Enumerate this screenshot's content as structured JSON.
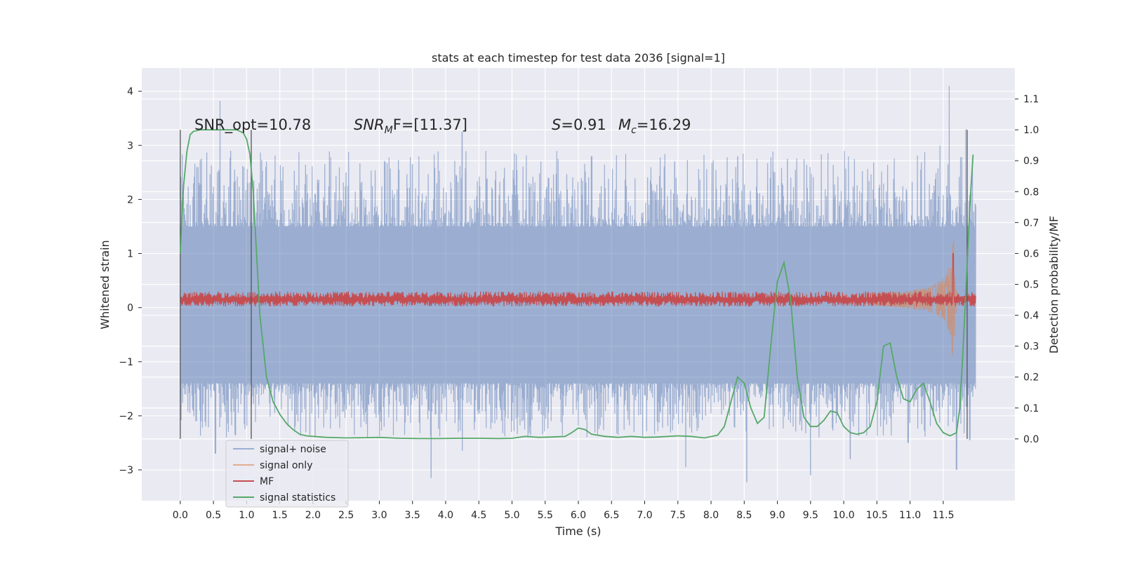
{
  "chart_data": {
    "type": "line",
    "title": "stats at each timestep for test data 2036 [signal=1]",
    "xlabel": "Time (s)",
    "ylabel_left": "Whitened strain",
    "ylabel_right": "Detection probability/MF",
    "xlim": [
      -0.58,
      12.58
    ],
    "ylim_left": [
      -3.57,
      4.43
    ],
    "ylim_right": [
      -0.2,
      1.2
    ],
    "x_ticks": [
      "0.0",
      "0.5",
      "1.0",
      "1.5",
      "2.0",
      "2.5",
      "3.0",
      "3.5",
      "4.0",
      "4.5",
      "5.0",
      "5.5",
      "6.0",
      "6.5",
      "7.0",
      "7.5",
      "8.0",
      "8.5",
      "9.0",
      "9.5",
      "10.0",
      "10.5",
      "11.0",
      "11.5"
    ],
    "y_ticks_left": [
      "4",
      "3",
      "2",
      "1",
      "0",
      "−1",
      "−2",
      "−3"
    ],
    "y_ticks_right": [
      "1.1",
      "1.0",
      "0.9",
      "0.8",
      "0.7",
      "0.6",
      "0.5",
      "0.4",
      "0.3",
      "0.2",
      "0.1",
      "0.0"
    ],
    "grid": true,
    "legend_position": "lower-left",
    "annotations": {
      "snr_opt": "SNR_opt=10.78",
      "snr_mf_symbol": "SNR",
      "snr_mf_sub": "M",
      "snr_mf_rest": "F=[11.37]",
      "s_symbol": "S",
      "s_rest": "=0.91",
      "mc_symbol": "M",
      "mc_sub": "c",
      "mc_rest": "=16.29"
    },
    "vertical_markers": [
      0.0,
      1.07,
      11.86
    ],
    "series": [
      {
        "name": "signal+ noise",
        "color": "#4c72b0",
        "kind": "noise_band",
        "x_range": [
          0.0,
          11.99
        ],
        "band_low": -1.45,
        "band_high": 1.55,
        "spike_peaks": [
          [
            0.19,
            2.05
          ],
          [
            0.6,
            3.82
          ],
          [
            0.76,
            2.9
          ],
          [
            1.3,
            2.7
          ],
          [
            2.5,
            2.5
          ],
          [
            3.5,
            2.65
          ],
          [
            4.25,
            3.25
          ],
          [
            5.55,
            2.4
          ],
          [
            6.2,
            2.8
          ],
          [
            7.45,
            2.7
          ],
          [
            8.4,
            2.8
          ],
          [
            9.15,
            2.75
          ],
          [
            11.45,
            3.0
          ],
          [
            11.59,
            4.1
          ],
          [
            11.84,
            3.3
          ]
        ],
        "spike_troughs": [
          [
            0.24,
            -2.1
          ],
          [
            0.53,
            -2.7
          ],
          [
            3.78,
            -3.15
          ],
          [
            4.25,
            -2.65
          ],
          [
            7.62,
            -2.95
          ],
          [
            8.54,
            -3.23
          ],
          [
            9.5,
            -3.1
          ],
          [
            10.1,
            -2.8
          ],
          [
            10.97,
            -2.5
          ],
          [
            11.7,
            -3.0
          ],
          [
            11.9,
            -2.45
          ]
        ]
      },
      {
        "name": "signal only",
        "color": "#dd8452",
        "kind": "chirp",
        "x_range": [
          10.0,
          11.8
        ],
        "peak_time": 11.65,
        "peak_amplitude": 1.4
      },
      {
        "name": "MF",
        "color": "#c44e52",
        "kind": "band",
        "x_range": [
          0.0,
          11.99
        ],
        "band_low": 0.02,
        "band_high": 0.3,
        "spike_time": 11.65,
        "spike_value": 1.0
      },
      {
        "name": "signal statistics",
        "color": "#55a868",
        "axis": "right",
        "x": [
          0.0,
          0.05,
          0.1,
          0.15,
          0.2,
          0.3,
          0.5,
          0.7,
          0.85,
          0.95,
          1.0,
          1.05,
          1.1,
          1.15,
          1.2,
          1.3,
          1.4,
          1.5,
          1.6,
          1.7,
          1.8,
          1.9,
          2.0,
          2.2,
          2.5,
          2.8,
          3.0,
          3.3,
          3.6,
          3.9,
          4.2,
          4.5,
          4.8,
          5.0,
          5.2,
          5.4,
          5.6,
          5.8,
          5.9,
          6.0,
          6.1,
          6.2,
          6.4,
          6.6,
          6.8,
          7.0,
          7.2,
          7.5,
          7.7,
          7.9,
          8.1,
          8.2,
          8.3,
          8.4,
          8.5,
          8.6,
          8.7,
          8.8,
          8.9,
          9.0,
          9.1,
          9.2,
          9.3,
          9.4,
          9.5,
          9.6,
          9.7,
          9.8,
          9.9,
          10.0,
          10.1,
          10.2,
          10.3,
          10.4,
          10.5,
          10.6,
          10.7,
          10.8,
          10.9,
          11.0,
          11.1,
          11.2,
          11.3,
          11.4,
          11.5,
          11.6,
          11.7,
          11.75,
          11.8,
          11.85,
          11.9,
          11.95
        ],
        "values": [
          0.6,
          0.82,
          0.93,
          0.985,
          0.995,
          1.0,
          1.0,
          1.0,
          1.0,
          0.99,
          0.97,
          0.92,
          0.8,
          0.6,
          0.4,
          0.2,
          0.12,
          0.08,
          0.05,
          0.03,
          0.015,
          0.01,
          0.008,
          0.005,
          0.003,
          0.004,
          0.005,
          0.002,
          0.001,
          0.001,
          0.002,
          0.002,
          0.001,
          0.002,
          0.008,
          0.005,
          0.006,
          0.008,
          0.02,
          0.035,
          0.03,
          0.015,
          0.008,
          0.005,
          0.008,
          0.005,
          0.006,
          0.01,
          0.008,
          0.003,
          0.012,
          0.04,
          0.12,
          0.2,
          0.18,
          0.1,
          0.05,
          0.07,
          0.3,
          0.51,
          0.57,
          0.45,
          0.2,
          0.07,
          0.04,
          0.04,
          0.06,
          0.09,
          0.085,
          0.04,
          0.02,
          0.015,
          0.02,
          0.04,
          0.12,
          0.3,
          0.31,
          0.2,
          0.13,
          0.12,
          0.16,
          0.18,
          0.12,
          0.05,
          0.02,
          0.01,
          0.02,
          0.1,
          0.3,
          0.52,
          0.75,
          0.92
        ]
      }
    ]
  }
}
